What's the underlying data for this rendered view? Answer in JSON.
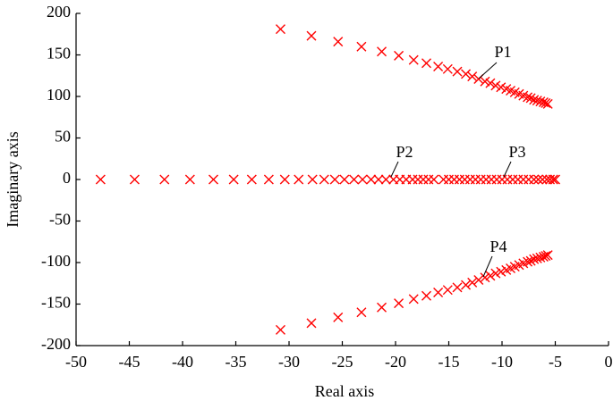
{
  "chart_data": {
    "type": "scatter",
    "x_label": "Real axis",
    "y_label": "Imaginary axis",
    "xlim": [
      -50,
      0
    ],
    "ylim": [
      -200,
      200
    ],
    "xticks": [
      -50,
      -45,
      -40,
      -35,
      -30,
      -25,
      -20,
      -15,
      -10,
      -5,
      0
    ],
    "yticks": [
      -200,
      -150,
      -100,
      -50,
      0,
      50,
      100,
      150,
      200
    ],
    "marker": "x",
    "annotations": [
      "P1",
      "P2",
      "P3",
      "P4"
    ],
    "series": [
      {
        "color": "#ff0000",
        "x": [
          -30.8,
          -27.9,
          -25.4,
          -23.2,
          -21.3,
          -19.7,
          -18.3,
          -17.1,
          -16.0,
          -15.1,
          -14.2,
          -13.4,
          -12.8,
          -12.2,
          -11.6,
          -11.1,
          -10.6,
          -10.1,
          -9.6,
          -9.2,
          -8.8,
          -8.4,
          -8.0,
          -7.6,
          -7.3,
          -7.0,
          -6.7,
          -6.4,
          -6.1,
          -5.9,
          -5.7
        ],
        "values": [
          181,
          173,
          166,
          160,
          154,
          149,
          144,
          140,
          136,
          133,
          130,
          127,
          124,
          121,
          118,
          116,
          113,
          111,
          109,
          107,
          105,
          103,
          101,
          99,
          98,
          96,
          95,
          94,
          93,
          92,
          91
        ]
      },
      {
        "color": "#ff0000",
        "x": [
          -47.7,
          -44.5,
          -41.7,
          -39.3,
          -37.1,
          -35.2,
          -33.5,
          -31.9,
          -30.4,
          -29.1,
          -27.8,
          -26.7,
          -25.7,
          -24.8,
          -23.9,
          -23.1,
          -22.3,
          -21.6,
          -20.9,
          -20.2,
          -19.6,
          -19.0,
          -18.4,
          -17.9,
          -17.4,
          -16.9,
          -16.4,
          -15.5,
          -15.0,
          -14.5,
          -14.0,
          -13.5,
          -13.0,
          -12.5,
          -12.0,
          -11.5,
          -11.0,
          -10.5,
          -10.0,
          -9.5,
          -9.0,
          -8.5,
          -8.0,
          -7.5,
          -7.0,
          -6.6,
          -6.2,
          -5.8,
          -5.5,
          -5.2,
          -5.0
        ],
        "values": [
          0,
          0,
          0,
          0,
          0,
          0,
          0,
          0,
          0,
          0,
          0,
          0,
          0,
          0,
          0,
          0,
          0,
          0,
          0,
          0,
          0,
          0,
          0,
          0,
          0,
          0,
          0,
          0,
          0,
          0,
          0,
          0,
          0,
          0,
          0,
          0,
          0,
          0,
          0,
          0,
          0,
          0,
          0,
          0,
          0,
          0,
          0,
          0,
          0,
          0,
          0
        ]
      },
      {
        "color": "#ff0000",
        "x": [
          -30.8,
          -27.9,
          -25.4,
          -23.2,
          -21.3,
          -19.7,
          -18.3,
          -17.1,
          -16.0,
          -15.1,
          -14.2,
          -13.4,
          -12.8,
          -12.2,
          -11.6,
          -11.1,
          -10.6,
          -10.1,
          -9.6,
          -9.2,
          -8.8,
          -8.4,
          -8.0,
          -7.6,
          -7.3,
          -7.0,
          -6.7,
          -6.4,
          -6.1,
          -5.9,
          -5.7
        ],
        "values": [
          -181,
          -173,
          -166,
          -160,
          -154,
          -149,
          -144,
          -140,
          -136,
          -133,
          -130,
          -127,
          -124,
          -121,
          -118,
          -116,
          -113,
          -111,
          -109,
          -107,
          -105,
          -103,
          -101,
          -99,
          -98,
          -96,
          -95,
          -94,
          -93,
          -92,
          -91
        ]
      }
    ]
  }
}
